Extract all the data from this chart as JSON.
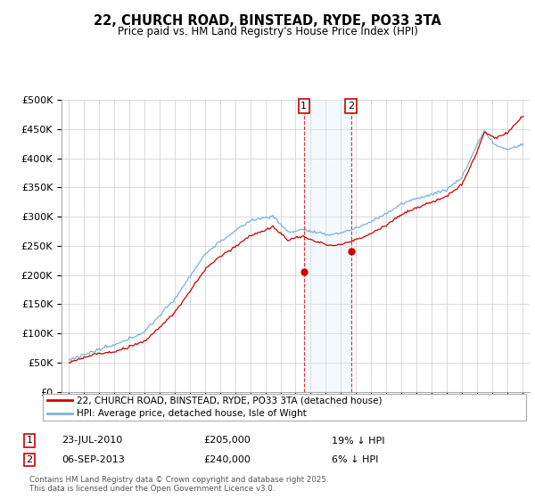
{
  "title": "22, CHURCH ROAD, BINSTEAD, RYDE, PO33 3TA",
  "subtitle": "Price paid vs. HM Land Registry's House Price Index (HPI)",
  "legend_line1": "22, CHURCH ROAD, BINSTEAD, RYDE, PO33 3TA (detached house)",
  "legend_line2": "HPI: Average price, detached house, Isle of Wight",
  "annotation1_date": "23-JUL-2010",
  "annotation1_price": "£205,000",
  "annotation1_hpi": "19% ↓ HPI",
  "annotation2_date": "06-SEP-2013",
  "annotation2_price": "£240,000",
  "annotation2_hpi": "6% ↓ HPI",
  "footer": "Contains HM Land Registry data © Crown copyright and database right 2025.\nThis data is licensed under the Open Government Licence v3.0.",
  "sale1_year": 2010.55,
  "sale1_value": 205000,
  "sale2_year": 2013.68,
  "sale2_value": 240000,
  "hpi_color": "#7ab3d4",
  "price_color": "#cc0000",
  "shaded_color": "#ddeeff",
  "background_color": "#ffffff",
  "grid_color": "#cccccc",
  "ylim": [
    0,
    500000
  ],
  "xlim_start": 1994.5,
  "xlim_end": 2025.5
}
